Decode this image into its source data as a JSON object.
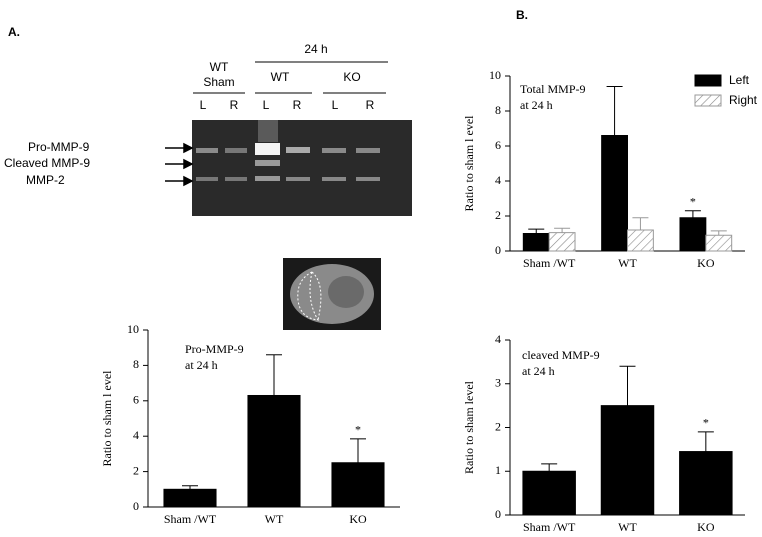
{
  "panels": [
    "A.",
    "B."
  ],
  "gel": {
    "groups": [
      "WT",
      "Sham",
      "24 h",
      "WT",
      "KO"
    ],
    "lanes": [
      "L",
      "R",
      "L",
      "R",
      "L",
      "R"
    ],
    "bands": [
      "Pro-MMP-9",
      "Cleaved MMP-9",
      "MMP-2"
    ]
  },
  "chart_data": [
    {
      "type": "bar",
      "title": [
        "Pro-MMP-9",
        "at 24 h"
      ],
      "y_label": "Ratio to sham l  evel",
      "categories": [
        "Sham /WT",
        "WT",
        "KO"
      ],
      "values": [
        1.0,
        6.3,
        2.5
      ],
      "errors": [
        0.2,
        2.3,
        1.35
      ],
      "color": "#000000",
      "ylim": [
        0,
        10
      ],
      "yticks": [
        0,
        2,
        4,
        6,
        8,
        10
      ],
      "annotations": [
        {
          "label": "*",
          "category": "KO"
        }
      ]
    },
    {
      "type": "bar",
      "title": [
        "Total MMP-9",
        "at 24 h"
      ],
      "y_label": "Ratio to sham l  evel",
      "categories": [
        "Sham /WT",
        "WT",
        "KO"
      ],
      "series": [
        {
          "name": "Left",
          "color": "#000000",
          "values": [
            1.0,
            6.6,
            1.9
          ],
          "errors": [
            0.25,
            2.8,
            0.4
          ]
        },
        {
          "name": "Right",
          "color": "#ffffff",
          "hatch": true,
          "values": [
            1.05,
            1.2,
            0.9
          ],
          "errors": [
            0.25,
            0.7,
            0.25
          ]
        }
      ],
      "ylim": [
        0,
        10
      ],
      "yticks": [
        0,
        2,
        4,
        6,
        8,
        10
      ],
      "legend": "upper right",
      "annotations": [
        {
          "label": "*",
          "category": "KO",
          "series": "Left"
        }
      ]
    },
    {
      "type": "bar",
      "title": [
        "cleaved MMP-9",
        "at 24 h"
      ],
      "y_label": "Ratio to sham   level",
      "categories": [
        "Sham /WT",
        "WT",
        "KO"
      ],
      "values": [
        1.0,
        2.5,
        1.45
      ],
      "errors": [
        0.17,
        0.9,
        0.45
      ],
      "color": "#000000",
      "ylim": [
        0,
        4
      ],
      "yticks": [
        0,
        1,
        2,
        3,
        4
      ],
      "annotations": [
        {
          "label": "*",
          "category": "KO"
        }
      ]
    }
  ]
}
